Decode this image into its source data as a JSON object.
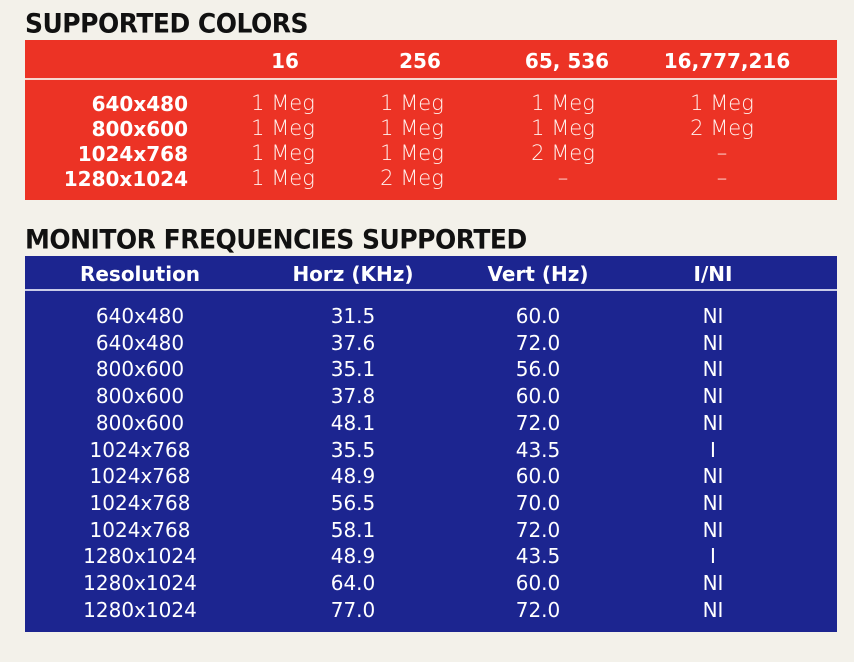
{
  "colors_table": {
    "title": "SUPPORTED COLORS",
    "columns": [
      "16",
      "256",
      "65, 536",
      "16,777,216"
    ],
    "rows": [
      {
        "resolution": "640x480",
        "values": [
          "1 Meg",
          "1 Meg",
          "1 Meg",
          "1 Meg"
        ]
      },
      {
        "resolution": "800x600",
        "values": [
          "1 Meg",
          "1 Meg",
          "1 Meg",
          "2 Meg"
        ]
      },
      {
        "resolution": "1024x768",
        "values": [
          "1 Meg",
          "1 Meg",
          "2 Meg",
          "–"
        ]
      },
      {
        "resolution": "1280x1024",
        "values": [
          "1 Meg",
          "2 Meg",
          "–",
          "–"
        ]
      }
    ],
    "bg_color": "#ec3325"
  },
  "frequencies_table": {
    "title": "MONITOR FREQUENCIES SUPPORTED",
    "columns": [
      "Resolution",
      "Horz (KHz)",
      "Vert (Hz)",
      "I/NI"
    ],
    "rows": [
      [
        "640x480",
        "31.5",
        "60.0",
        "NI"
      ],
      [
        "640x480",
        "37.6",
        "72.0",
        "NI"
      ],
      [
        "800x600",
        "35.1",
        "56.0",
        "NI"
      ],
      [
        "800x600",
        "37.8",
        "60.0",
        "NI"
      ],
      [
        "800x600",
        "48.1",
        "72.0",
        "NI"
      ],
      [
        "1024x768",
        "35.5",
        "43.5",
        "I"
      ],
      [
        "1024x768",
        "48.9",
        "60.0",
        "NI"
      ],
      [
        "1024x768",
        "56.5",
        "70.0",
        "NI"
      ],
      [
        "1024x768",
        "58.1",
        "72.0",
        "NI"
      ],
      [
        "1280x1024",
        "48.9",
        "43.5",
        "I"
      ],
      [
        "1280x1024",
        "64.0",
        "60.0",
        "NI"
      ],
      [
        "1280x1024",
        "77.0",
        "72.0",
        "NI"
      ]
    ],
    "bg_color": "#1c2590"
  }
}
